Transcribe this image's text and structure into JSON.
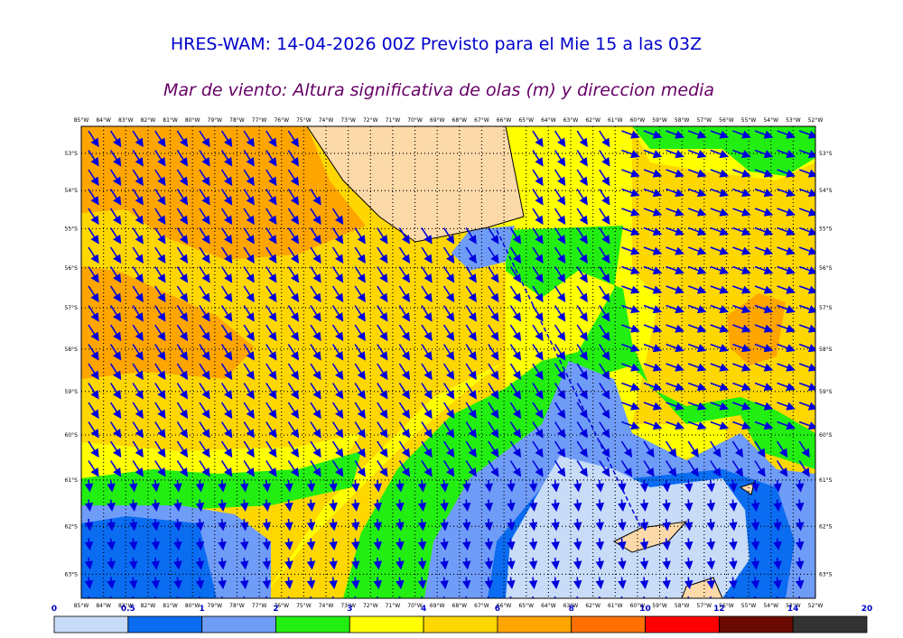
{
  "header": {
    "title": "HRES-WAM: 14-04-2026 00Z Previsto para el Mie 15 a las 03Z",
    "subtitle": "Mar de viento: Altura significativa de olas (m) y direccion media"
  },
  "map": {
    "lon_ticks": [
      {
        "value": -85,
        "label": "85°W"
      },
      {
        "value": -84,
        "label": "84°W"
      },
      {
        "value": -83,
        "label": "83°W"
      },
      {
        "value": -82,
        "label": "82°W"
      },
      {
        "value": -81,
        "label": "81°W"
      },
      {
        "value": -80,
        "label": "80°W"
      },
      {
        "value": -79,
        "label": "79°W"
      },
      {
        "value": -78,
        "label": "78°W"
      },
      {
        "value": -77,
        "label": "77°W"
      },
      {
        "value": -76,
        "label": "76°W"
      },
      {
        "value": -75,
        "label": "75°W"
      },
      {
        "value": -74,
        "label": "74°W"
      },
      {
        "value": -73,
        "label": "73°W"
      },
      {
        "value": -72,
        "label": "72°W"
      },
      {
        "value": -71,
        "label": "71°W"
      },
      {
        "value": -70,
        "label": "70°W"
      },
      {
        "value": -69,
        "label": "69°W"
      },
      {
        "value": -68,
        "label": "68°W"
      },
      {
        "value": -67,
        "label": "67°W"
      },
      {
        "value": -66,
        "label": "66°W"
      },
      {
        "value": -65,
        "label": "65°W"
      },
      {
        "value": -64,
        "label": "64°W"
      },
      {
        "value": -63,
        "label": "63°W"
      },
      {
        "value": -62,
        "label": "62°W"
      },
      {
        "value": -61,
        "label": "61°W"
      },
      {
        "value": -60,
        "label": "60°W"
      },
      {
        "value": -59,
        "label": "59°W"
      },
      {
        "value": -58,
        "label": "58°W"
      },
      {
        "value": -57,
        "label": "57°W"
      },
      {
        "value": -56,
        "label": "56°W"
      },
      {
        "value": -55,
        "label": "55°W"
      },
      {
        "value": -54,
        "label": "54°W"
      },
      {
        "value": -53,
        "label": "53°W"
      },
      {
        "value": -52,
        "label": "52°W"
      }
    ],
    "lat_ticks": [
      {
        "value": -53,
        "label": "53°S"
      },
      {
        "value": -54,
        "label": "54°S"
      },
      {
        "value": -55,
        "label": "55°S"
      },
      {
        "value": -56,
        "label": "56°S"
      },
      {
        "value": -57,
        "label": "57°S"
      },
      {
        "value": -58,
        "label": "58°S"
      },
      {
        "value": -59,
        "label": "59°S"
      },
      {
        "value": -60,
        "label": "60°S"
      },
      {
        "value": -61,
        "label": "61°S"
      },
      {
        "value": -62,
        "label": "62°S"
      },
      {
        "value": -63,
        "label": "63°S"
      }
    ]
  },
  "colorbar": {
    "levels": [
      0,
      0.5,
      1,
      2,
      3,
      4,
      6,
      8,
      10,
      12,
      14,
      20
    ],
    "colors": [
      "#c8dcf8",
      "#0a6cf0",
      "#6f9cf7",
      "#22ee11",
      "#ffff00",
      "#ffd700",
      "#ffa500",
      "#ff7000",
      "#ff0000",
      "#6b0a00",
      "#333333"
    ]
  }
}
